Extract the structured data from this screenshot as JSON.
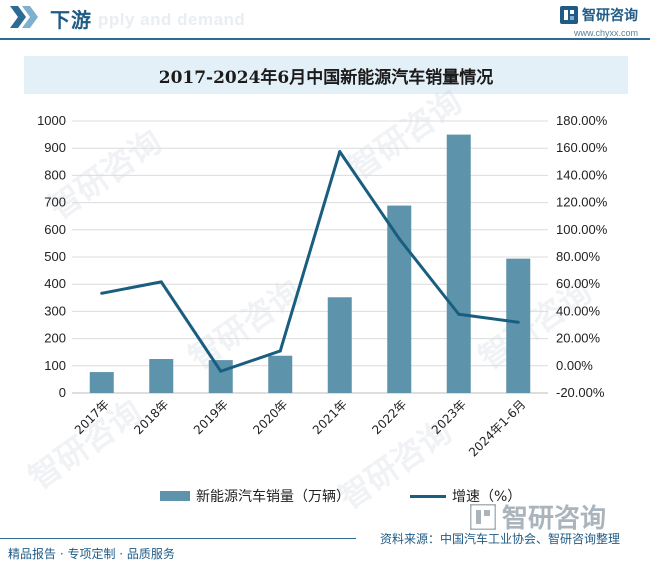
{
  "header": {
    "title": "下游",
    "ghost_text": "pply and demand"
  },
  "brand": {
    "name": "智研咨询",
    "url": "www.chyxx.com"
  },
  "watermark": {
    "text": "智研咨询"
  },
  "chart_data": {
    "type": "bar+line",
    "title": "2017-2024年6月中国新能源汽车销量情况",
    "categories": [
      "2017年",
      "2018年",
      "2019年",
      "2020年",
      "2021年",
      "2022年",
      "2023年",
      "2024年1-6月"
    ],
    "series": [
      {
        "name": "新能源汽车销量（万辆）",
        "type": "bar",
        "axis": "left",
        "color": "#5e94ab",
        "values": [
          77,
          125,
          121,
          137,
          352,
          689,
          950,
          494
        ]
      },
      {
        "name": "增速（%）",
        "type": "line",
        "axis": "right",
        "color": "#1a5e7f",
        "values": [
          53.3,
          61.7,
          -4.0,
          10.9,
          157.5,
          93.4,
          37.9,
          32.0
        ]
      }
    ],
    "y_left": {
      "min": 0,
      "max": 1000,
      "ticks": [
        0,
        100,
        200,
        300,
        400,
        500,
        600,
        700,
        800,
        900,
        1000
      ]
    },
    "y_right": {
      "min": -20,
      "max": 180,
      "ticks": [
        -20,
        0,
        20,
        40,
        60,
        80,
        100,
        120,
        140,
        160,
        180
      ],
      "tick_labels": [
        "-20.00%",
        "0.00%",
        "20.00%",
        "40.00%",
        "60.00%",
        "80.00%",
        "100.00%",
        "120.00%",
        "140.00%",
        "160.00%",
        "180.00%"
      ]
    },
    "grid": "horizontal",
    "legend_position": "bottom"
  },
  "legend": {
    "bar_label": "新能源汽车销量（万辆）",
    "line_label": "增速（%）"
  },
  "source": "资料来源：中国汽车工业协会、智研咨询整理",
  "footer": "精品报告 · 专项定制 · 品质服务"
}
